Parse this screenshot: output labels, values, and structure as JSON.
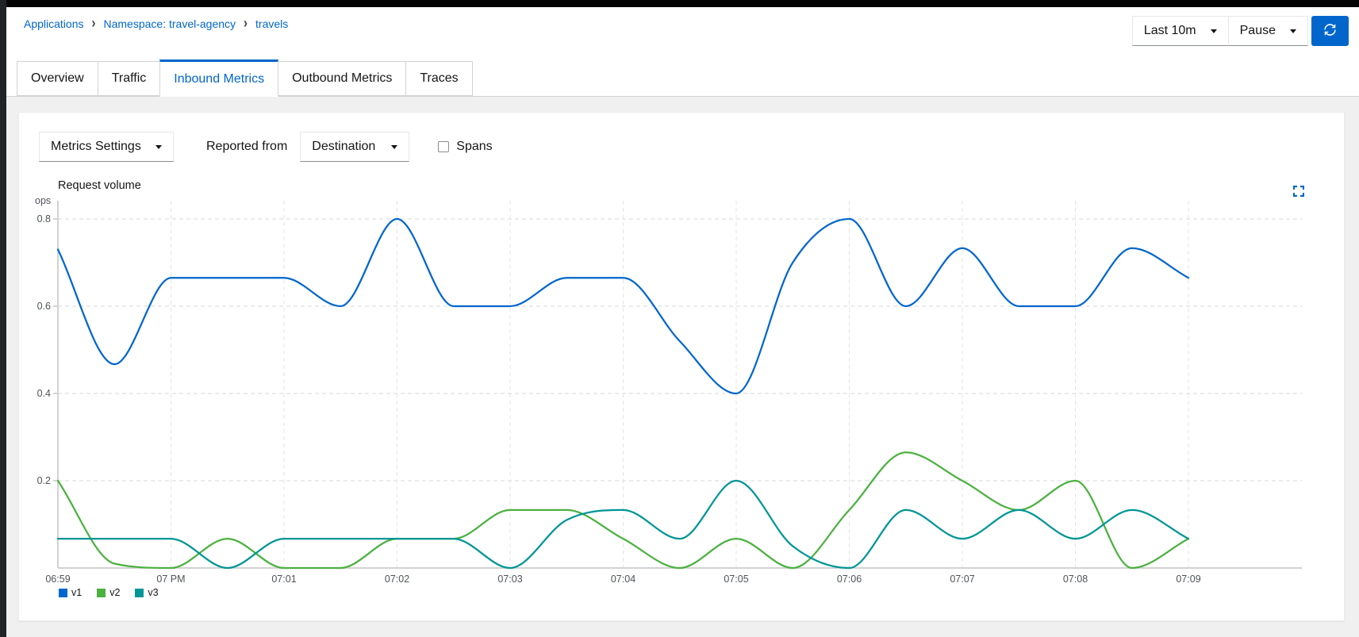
{
  "breadcrumb": {
    "items": [
      "Applications",
      "Namespace: travel-agency",
      "travels"
    ],
    "separator": "›"
  },
  "toolbar": {
    "duration_label": "Last 10m",
    "refresh_mode_label": "Pause",
    "icons": {
      "refresh": "sync-alt-icon",
      "dropdown": "caret-down-icon"
    }
  },
  "tabs": [
    {
      "label": "Overview",
      "active": false
    },
    {
      "label": "Traffic",
      "active": false
    },
    {
      "label": "Inbound Metrics",
      "active": true
    },
    {
      "label": "Outbound Metrics",
      "active": false
    },
    {
      "label": "Traces",
      "active": false
    }
  ],
  "metrics_controls": {
    "metrics_settings_label": "Metrics Settings",
    "reported_from_label": "Reported from",
    "reporter_label": "Destination",
    "spans_label": "Spans",
    "spans_checked": false
  },
  "colors": {
    "accent": "#0066cc",
    "page_background": "#f0f0f0",
    "grid": "#d2d2d2"
  },
  "chart_data": {
    "type": "line",
    "title": "Request volume",
    "y_unit": "ops",
    "xlabel": "",
    "ylabel": "ops",
    "ylim": [
      0,
      0.84
    ],
    "grid": "dashed",
    "legend_position": "bottom-left",
    "x_step_seconds": 30,
    "x_ticks_every_n_points": 2,
    "x_tick_labels": [
      "06:59",
      "07 PM",
      "07:01",
      "07:02",
      "07:03",
      "07:04",
      "07:05",
      "07:06",
      "07:07",
      "07:08",
      "07:09"
    ],
    "y_ticks": [
      0.8,
      0.6,
      0.4,
      0.2
    ],
    "series": [
      {
        "name": "v1",
        "color": "#0066cc",
        "values": [
          0.73,
          0.467,
          0.665,
          0.665,
          0.665,
          0.6,
          0.8,
          0.6,
          0.6,
          0.665,
          0.665,
          0.52,
          0.4,
          0.7,
          0.8,
          0.6,
          0.733,
          0.6,
          0.6,
          0.733,
          0.665
        ]
      },
      {
        "name": "v2",
        "color": "#4cb140",
        "values": [
          0.2,
          0.01,
          0,
          0.067,
          0,
          0,
          0.067,
          0.067,
          0.133,
          0.133,
          0.067,
          0,
          0.067,
          0,
          0.133,
          0.265,
          0.2,
          0.133,
          0.2,
          0,
          0.067
        ]
      },
      {
        "name": "v3",
        "color": "#009596",
        "values": [
          0.067,
          0.067,
          0.067,
          0,
          0.067,
          0.067,
          0.067,
          0.067,
          0,
          0.11,
          0.133,
          0.067,
          0.2,
          0.05,
          0,
          0.133,
          0.067,
          0.133,
          0.067,
          0.133,
          0.067
        ]
      }
    ]
  }
}
